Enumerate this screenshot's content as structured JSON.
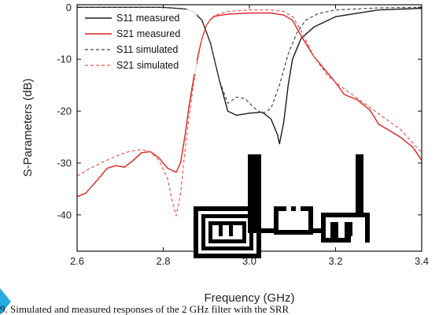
{
  "colors": {
    "measured_s11": "#1a1a1a",
    "measured_s21": "#dd2222",
    "simulated_s11": "#444444",
    "simulated_s21": "#ee5555",
    "accent": "#29abe2"
  },
  "caption_text": "9. Simulated and measured responses of the 2 GHz filter with the SRR",
  "chart_data": {
    "type": "line",
    "title": "",
    "xlabel": "Frequency (GHz)",
    "ylabel": "S-Parameters (dB)",
    "xlim": [
      2.6,
      3.4
    ],
    "ylim": [
      -47,
      0.5
    ],
    "xticks": [
      "2.6",
      "2.8",
      "3.0",
      "3.2",
      "3.4"
    ],
    "yticks": [
      "0",
      "-10",
      "-20",
      "-30",
      "-40"
    ],
    "grid": false,
    "legend_position": "top-left",
    "series": [
      {
        "name": "S11 measured",
        "style": "solid",
        "color": "#1a1a1a",
        "x": [
          2.6,
          2.8,
          2.85,
          2.87,
          2.89,
          2.91,
          2.93,
          2.95,
          2.97,
          3.0,
          3.03,
          3.05,
          3.065,
          3.07,
          3.08,
          3.09,
          3.1,
          3.12,
          3.15,
          3.2,
          3.3,
          3.4
        ],
        "y": [
          0,
          0,
          -0.3,
          -0.8,
          -2.5,
          -7,
          -14,
          -20,
          -20.8,
          -20.4,
          -20.2,
          -21.5,
          -24.5,
          -26.3,
          -22,
          -15,
          -10,
          -6,
          -3.8,
          -1.8,
          -0.5,
          -0.2
        ]
      },
      {
        "name": "S21 measured",
        "style": "solid",
        "color": "#dd2222",
        "x": [
          2.6,
          2.62,
          2.65,
          2.67,
          2.69,
          2.71,
          2.73,
          2.75,
          2.77,
          2.79,
          2.81,
          2.83,
          2.84,
          2.85,
          2.86,
          2.87,
          2.88,
          2.89,
          2.9,
          2.91,
          2.92,
          2.95,
          3.0,
          3.05,
          3.08,
          3.1,
          3.12,
          3.15,
          3.18,
          3.2,
          3.22,
          3.25,
          3.28,
          3.3,
          3.33,
          3.35,
          3.38,
          3.4
        ],
        "y": [
          -36.5,
          -35.8,
          -33,
          -31,
          -30.5,
          -30.8,
          -29.5,
          -28,
          -27.8,
          -29,
          -31,
          -31.8,
          -30,
          -25,
          -19,
          -14,
          -9.5,
          -6,
          -3.5,
          -2.3,
          -1.7,
          -1.3,
          -1.1,
          -1.1,
          -1.5,
          -2.5,
          -5.5,
          -9.5,
          -12.5,
          -14.5,
          -16.8,
          -17.8,
          -19.8,
          -22.5,
          -24,
          -25,
          -27,
          -29.5
        ]
      },
      {
        "name": "S11 simulated",
        "style": "dashed",
        "color": "#444444",
        "x": [
          2.6,
          2.8,
          2.85,
          2.87,
          2.89,
          2.91,
          2.93,
          2.95,
          2.97,
          2.99,
          3.01,
          3.03,
          3.05,
          3.07,
          3.09,
          3.11,
          3.13,
          3.16,
          3.2,
          3.3,
          3.4
        ],
        "y": [
          0,
          0,
          -0.3,
          -0.8,
          -2.5,
          -7,
          -14,
          -18.5,
          -17.3,
          -17.6,
          -19.3,
          -20.5,
          -19.5,
          -15,
          -9,
          -5,
          -2.5,
          -1.2,
          -0.5,
          -0.1,
          0
        ]
      },
      {
        "name": "S21 simulated",
        "style": "dashed",
        "color": "#ee5555",
        "x": [
          2.6,
          2.63,
          2.66,
          2.69,
          2.72,
          2.75,
          2.77,
          2.79,
          2.81,
          2.82,
          2.83,
          2.84,
          2.85,
          2.86,
          2.87,
          2.88,
          2.89,
          2.9,
          2.91,
          2.92,
          2.95,
          3.0,
          3.05,
          3.08,
          3.1,
          3.12,
          3.15,
          3.18,
          3.2,
          3.25,
          3.3,
          3.35,
          3.4
        ],
        "y": [
          -32.5,
          -31,
          -29.8,
          -28.7,
          -27.8,
          -27.4,
          -27.8,
          -29.5,
          -33,
          -37,
          -40.2,
          -36,
          -28,
          -21,
          -15,
          -10,
          -6,
          -3.5,
          -2.3,
          -1.5,
          -0.8,
          -0.5,
          -0.5,
          -0.8,
          -1.8,
          -4.5,
          -9.5,
          -13,
          -14.5,
          -17.5,
          -20.5,
          -23.5,
          -28
        ]
      }
    ]
  }
}
